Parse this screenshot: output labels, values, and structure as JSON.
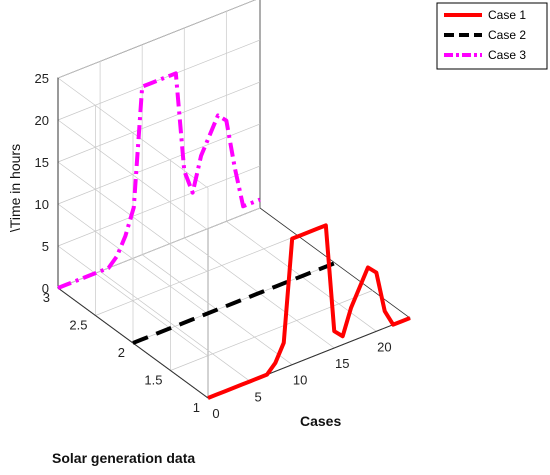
{
  "chart_data": {
    "type": "line",
    "projection": "3d",
    "xlabel": "Cases",
    "ylabel": "Solar generation data",
    "zlabel": "\\Time in hours",
    "xlim": [
      0,
      24
    ],
    "ylim": [
      1,
      3
    ],
    "zlim": [
      0,
      25
    ],
    "x_ticks": [
      0,
      5,
      10,
      15,
      20
    ],
    "y_ticks": [
      1,
      1.5,
      2,
      2.5,
      3
    ],
    "z_ticks": [
      0,
      5,
      10,
      15,
      20,
      25
    ],
    "y_tick_labels": [
      "1",
      "1.5",
      "2",
      "2.5",
      "3"
    ],
    "grid": true,
    "legend_position": "top-right",
    "series": [
      {
        "name": "Case 1",
        "y_level": 1,
        "color": "#ff0000",
        "dash": "solid",
        "x": [
          0,
          1,
          2,
          3,
          4,
          5,
          6,
          7,
          8,
          9,
          10,
          11,
          12,
          13,
          14,
          15,
          16,
          17,
          18,
          19,
          20,
          21,
          22,
          23,
          24
        ],
        "z": [
          0,
          0,
          0,
          0,
          0,
          0,
          0,
          0,
          1,
          3,
          15,
          15,
          15,
          15,
          15,
          2,
          1,
          4,
          6,
          8,
          7,
          2,
          0,
          0,
          0
        ]
      },
      {
        "name": "Case 2",
        "y_level": 2,
        "color": "#000000",
        "dash": "dashed",
        "x": [
          0,
          1,
          2,
          3,
          4,
          5,
          6,
          7,
          8,
          9,
          10,
          11,
          12,
          13,
          14,
          15,
          16,
          17,
          18,
          19,
          20,
          21,
          22,
          23,
          24
        ],
        "z": [
          0,
          0,
          0,
          0,
          0,
          0,
          0,
          0,
          0,
          0,
          0,
          0,
          0,
          0,
          0,
          0,
          0,
          0,
          0,
          0,
          0,
          0,
          0,
          0,
          0
        ]
      },
      {
        "name": "Case 3",
        "y_level": 3,
        "color": "#ff00ff",
        "dash": "dash-dot",
        "x": [
          0,
          1,
          2,
          3,
          4,
          5,
          6,
          7,
          8,
          9,
          10,
          11,
          12,
          13,
          14,
          15,
          16,
          17,
          18,
          19,
          20,
          21,
          22,
          23,
          24
        ],
        "z": [
          0,
          0,
          0,
          0,
          0,
          0,
          0,
          1,
          3,
          6,
          20,
          20,
          20,
          20,
          20,
          8,
          5,
          9,
          11,
          13,
          12,
          6,
          1,
          1,
          1
        ]
      }
    ]
  }
}
